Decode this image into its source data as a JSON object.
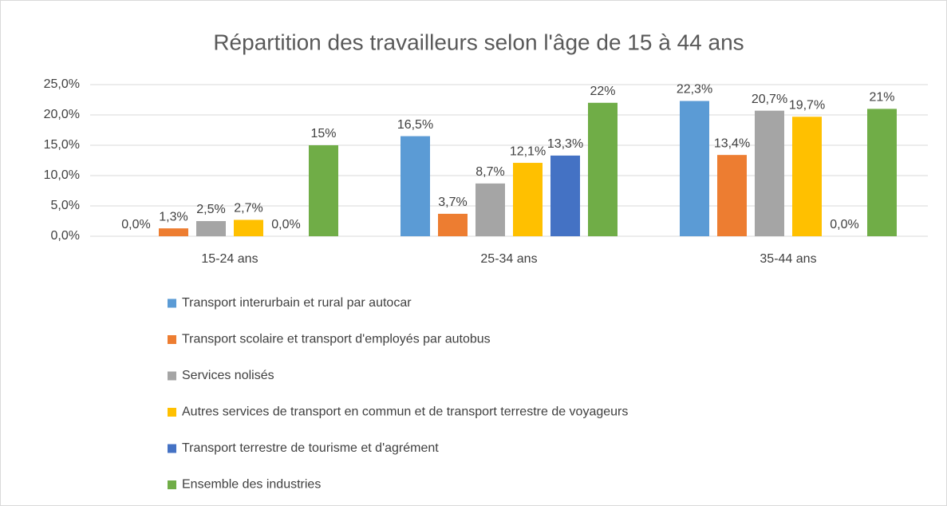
{
  "chart_data": {
    "type": "bar",
    "title": "Répartition des travailleurs selon l'âge de 15 à 44 ans",
    "categories": [
      "15-24 ans",
      "25-34 ans",
      "35-44 ans"
    ],
    "series": [
      {
        "name": "Transport interurbain et rural par autocar",
        "color": "#5b9bd5",
        "values": [
          0.0,
          16.5,
          22.3
        ],
        "value_labels": [
          "0,0%",
          "16,5%",
          "22,3%"
        ]
      },
      {
        "name": "Transport scolaire et transport d'employés par autobus",
        "color": "#ed7d31",
        "values": [
          1.3,
          3.7,
          13.4
        ],
        "value_labels": [
          "1,3%",
          "3,7%",
          "13,4%"
        ]
      },
      {
        "name": "Services nolisés",
        "color": "#a5a5a5",
        "values": [
          2.5,
          8.7,
          20.7
        ],
        "value_labels": [
          "2,5%",
          "8,7%",
          "20,7%"
        ]
      },
      {
        "name": "Autres services de transport en commun et de transport terrestre de voyageurs",
        "color": "#ffc000",
        "values": [
          2.7,
          12.1,
          19.7
        ],
        "value_labels": [
          "2,7%",
          "12,1%",
          "19,7%"
        ]
      },
      {
        "name": "Transport terrestre de tourisme et d'agrément",
        "color": "#4472c4",
        "values": [
          0.0,
          13.3,
          0.0
        ],
        "value_labels": [
          "0,0%",
          "13,3%",
          "0,0%"
        ]
      },
      {
        "name": "Ensemble des industries",
        "color": "#70ad47",
        "values": [
          15,
          22,
          21
        ],
        "value_labels": [
          "15%",
          "22%",
          "21%"
        ]
      }
    ],
    "ylim": [
      0,
      25
    ],
    "yticks": [
      {
        "value": 0,
        "label": "0,0%"
      },
      {
        "value": 5,
        "label": "5,0%"
      },
      {
        "value": 10,
        "label": "10,0%"
      },
      {
        "value": 15,
        "label": "15,0%"
      },
      {
        "value": 20,
        "label": "20,0%"
      },
      {
        "value": 25,
        "label": "25,0%"
      }
    ],
    "grid": true,
    "legend": "bottom"
  }
}
